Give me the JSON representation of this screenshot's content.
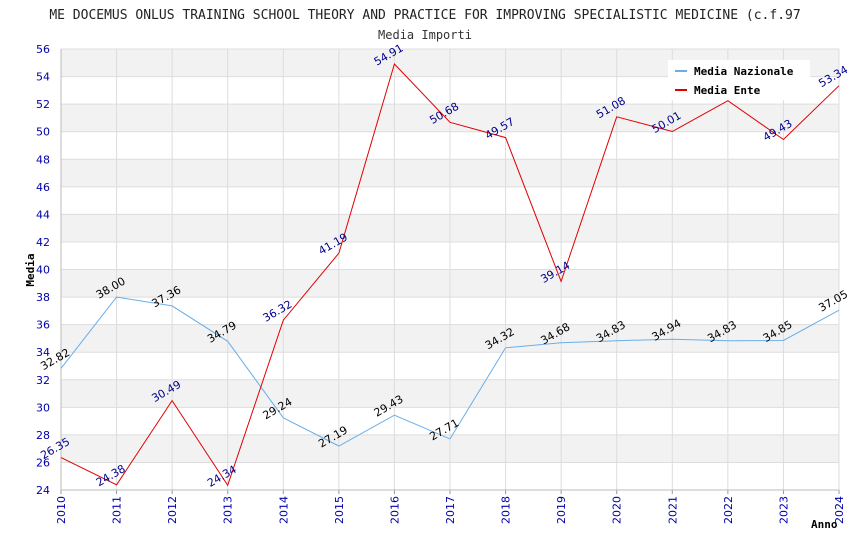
{
  "chart_data": {
    "type": "line",
    "title": "ME DOCEMUS ONLUS TRAINING SCHOOL THEORY AND PRACTICE FOR IMPROVING SPECIALISTIC MEDICINE (c.f.97",
    "subtitle": "Media Importi",
    "xlabel": "Anno",
    "ylabel": "Media",
    "x": [
      "2010",
      "2011",
      "2012",
      "2013",
      "2014",
      "2015",
      "2016",
      "2017",
      "2018",
      "2019",
      "2020",
      "2021",
      "2022",
      "2023",
      "2024"
    ],
    "ylim": [
      24,
      56
    ],
    "yticks": [
      24,
      26,
      28,
      30,
      32,
      34,
      36,
      38,
      40,
      42,
      44,
      46,
      48,
      50,
      52,
      54,
      56
    ],
    "legend_position": "top-right",
    "series": [
      {
        "name": "Media Nazionale",
        "color": "#6aaee8",
        "label_color": "#000000",
        "values": [
          32.82,
          38.0,
          37.36,
          34.79,
          29.24,
          27.19,
          29.43,
          27.71,
          34.32,
          34.68,
          34.83,
          34.94,
          34.83,
          34.85,
          37.05
        ],
        "labels": [
          "32.82",
          "38.00",
          "37.36",
          "34.79",
          "29.24",
          "27.19",
          "29.43",
          "27.71",
          "34.32",
          "34.68",
          "34.83",
          "34.94",
          "34.83",
          "34.85",
          "37.05"
        ]
      },
      {
        "name": "Media Ente",
        "color": "#e00000",
        "label_color": "#00008b",
        "values": [
          26.35,
          24.38,
          30.49,
          24.34,
          36.32,
          41.19,
          54.91,
          50.68,
          49.57,
          39.14,
          51.08,
          50.01,
          52.25,
          49.43,
          53.34
        ],
        "labels": [
          "26.35",
          "24.38",
          "30.49",
          "24.34",
          "36.32",
          "41.19",
          "54.91",
          "50.68",
          "49.57",
          "39.14",
          "51.08",
          "50.01",
          "",
          "49.43",
          "53.34"
        ]
      }
    ]
  }
}
